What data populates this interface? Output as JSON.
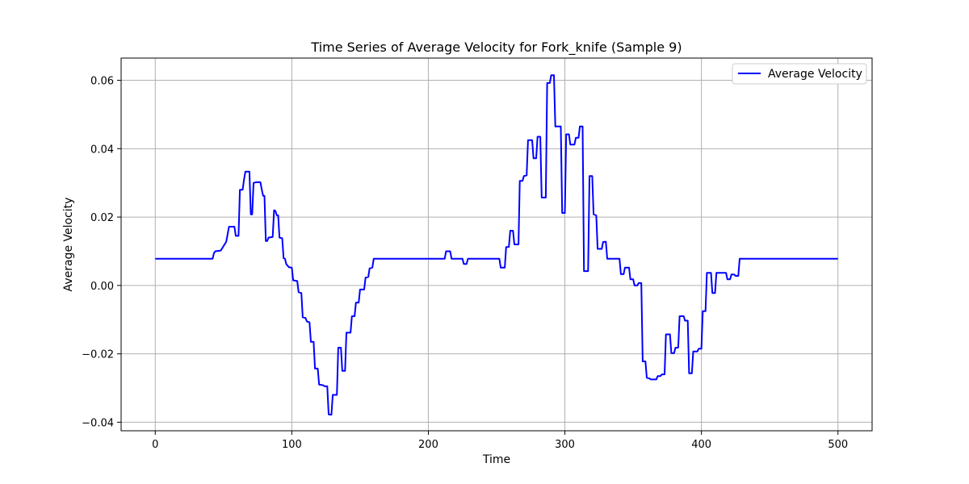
{
  "chart_data": {
    "type": "line",
    "title": "Time Series of Average Velocity for Fork_knife (Sample 9)",
    "xlabel": "Time",
    "ylabel": "Average Velocity",
    "xlim": [
      -25,
      525
    ],
    "ylim": [
      -0.0425,
      0.0665
    ],
    "xticks": [
      0,
      100,
      200,
      300,
      400,
      500
    ],
    "xtick_labels": [
      "0",
      "100",
      "200",
      "300",
      "400",
      "500"
    ],
    "yticks": [
      -0.04,
      -0.02,
      0.0,
      0.02,
      0.04,
      0.06
    ],
    "ytick_labels": [
      "−0.04",
      "−0.02",
      "0.00",
      "0.02",
      "0.04",
      "0.06"
    ],
    "grid": true,
    "legend_position": "top-right",
    "series": [
      {
        "name": "Average Velocity",
        "color": "#0000ff",
        "points": [
          [
            0,
            0.0078
          ],
          [
            42,
            0.0078
          ],
          [
            43,
            0.0095
          ],
          [
            44,
            0.01
          ],
          [
            48,
            0.0102
          ],
          [
            50,
            0.0115
          ],
          [
            52,
            0.0128
          ],
          [
            53,
            0.015
          ],
          [
            54,
            0.0172
          ],
          [
            58,
            0.0172
          ],
          [
            59,
            0.0145
          ],
          [
            61,
            0.0145
          ],
          [
            62,
            0.028
          ],
          [
            64,
            0.028
          ],
          [
            65,
            0.031
          ],
          [
            66,
            0.0333
          ],
          [
            69,
            0.0333
          ],
          [
            70,
            0.0208
          ],
          [
            71,
            0.0208
          ],
          [
            72,
            0.03
          ],
          [
            74,
            0.0302
          ],
          [
            77,
            0.0302
          ],
          [
            78,
            0.028
          ],
          [
            79,
            0.0262
          ],
          [
            80,
            0.0262
          ],
          [
            81,
            0.013
          ],
          [
            82,
            0.013
          ],
          [
            83,
            0.014
          ],
          [
            86,
            0.0142
          ],
          [
            87,
            0.022
          ],
          [
            88,
            0.0218
          ],
          [
            89,
            0.0205
          ],
          [
            90,
            0.0205
          ],
          [
            91,
            0.014
          ],
          [
            93,
            0.0138
          ],
          [
            94,
            0.008
          ],
          [
            95,
            0.0078
          ],
          [
            96,
            0.0062
          ],
          [
            98,
            0.0053
          ],
          [
            100,
            0.0052
          ],
          [
            101,
            0.0015
          ],
          [
            104,
            0.0013
          ],
          [
            105,
            -0.002
          ],
          [
            107,
            -0.0022
          ],
          [
            108,
            -0.0093
          ],
          [
            110,
            -0.0095
          ],
          [
            111,
            -0.0105
          ],
          [
            113,
            -0.0108
          ],
          [
            114,
            -0.0165
          ],
          [
            116,
            -0.0165
          ],
          [
            117,
            -0.0243
          ],
          [
            119,
            -0.0243
          ],
          [
            120,
            -0.029
          ],
          [
            123,
            -0.0292
          ],
          [
            124,
            -0.0295
          ],
          [
            126,
            -0.0295
          ],
          [
            127,
            -0.0377
          ],
          [
            129,
            -0.0378
          ],
          [
            130,
            -0.032
          ],
          [
            133,
            -0.032
          ],
          [
            134,
            -0.0182
          ],
          [
            136,
            -0.0182
          ],
          [
            137,
            -0.025
          ],
          [
            139,
            -0.025
          ],
          [
            140,
            -0.0138
          ],
          [
            143,
            -0.0138
          ],
          [
            144,
            -0.009
          ],
          [
            146,
            -0.009
          ],
          [
            147,
            -0.005
          ],
          [
            149,
            -0.005
          ],
          [
            150,
            -0.0012
          ],
          [
            153,
            -0.0012
          ],
          [
            154,
            0.0023
          ],
          [
            156,
            0.0025
          ],
          [
            157,
            0.005
          ],
          [
            159,
            0.0052
          ],
          [
            160,
            0.0078
          ],
          [
            212,
            0.0078
          ],
          [
            213,
            0.01
          ],
          [
            216,
            0.01
          ],
          [
            217,
            0.0078
          ],
          [
            225,
            0.0078
          ],
          [
            226,
            0.0063
          ],
          [
            228,
            0.0063
          ],
          [
            229,
            0.0078
          ],
          [
            252,
            0.0078
          ],
          [
            253,
            0.0052
          ],
          [
            256,
            0.0052
          ],
          [
            257,
            0.0112
          ],
          [
            259,
            0.0113
          ],
          [
            260,
            0.016
          ],
          [
            262,
            0.016
          ],
          [
            263,
            0.012
          ],
          [
            266,
            0.012
          ],
          [
            267,
            0.0306
          ],
          [
            269,
            0.0306
          ],
          [
            270,
            0.032
          ],
          [
            272,
            0.0322
          ],
          [
            273,
            0.0425
          ],
          [
            276,
            0.0425
          ],
          [
            277,
            0.0372
          ],
          [
            279,
            0.0372
          ],
          [
            280,
            0.0435
          ],
          [
            282,
            0.0435
          ],
          [
            283,
            0.0257
          ],
          [
            286,
            0.0257
          ],
          [
            287,
            0.0592
          ],
          [
            289,
            0.0592
          ],
          [
            290,
            0.0615
          ],
          [
            292,
            0.0615
          ],
          [
            293,
            0.0465
          ],
          [
            297,
            0.0465
          ],
          [
            298,
            0.0212
          ],
          [
            300,
            0.0212
          ],
          [
            301,
            0.0442
          ],
          [
            303,
            0.0442
          ],
          [
            304,
            0.0412
          ],
          [
            307,
            0.0412
          ],
          [
            308,
            0.0432
          ],
          [
            310,
            0.0432
          ],
          [
            311,
            0.0465
          ],
          [
            313,
            0.0465
          ],
          [
            314,
            0.0042
          ],
          [
            317,
            0.0042
          ],
          [
            318,
            0.032
          ],
          [
            320,
            0.032
          ],
          [
            321,
            0.0208
          ],
          [
            323,
            0.0205
          ],
          [
            324,
            0.0107
          ],
          [
            327,
            0.0107
          ],
          [
            328,
            0.0127
          ],
          [
            330,
            0.0128
          ],
          [
            331,
            0.0078
          ],
          [
            340,
            0.0078
          ],
          [
            341,
            0.0033
          ],
          [
            343,
            0.0033
          ],
          [
            344,
            0.0052
          ],
          [
            347,
            0.0052
          ],
          [
            348,
            0.0018
          ],
          [
            350,
            0.0018
          ],
          [
            351,
            0.0
          ],
          [
            353,
            0.0
          ],
          [
            354,
            0.0007
          ],
          [
            356,
            0.0007
          ],
          [
            357,
            -0.0222
          ],
          [
            359,
            -0.0222
          ],
          [
            360,
            -0.027
          ],
          [
            362,
            -0.0272
          ],
          [
            363,
            -0.0275
          ],
          [
            367,
            -0.0275
          ],
          [
            368,
            -0.0265
          ],
          [
            370,
            -0.0265
          ],
          [
            371,
            -0.026
          ],
          [
            373,
            -0.026
          ],
          [
            374,
            -0.0143
          ],
          [
            377,
            -0.0143
          ],
          [
            378,
            -0.0198
          ],
          [
            380,
            -0.0198
          ],
          [
            381,
            -0.0182
          ],
          [
            383,
            -0.0182
          ],
          [
            384,
            -0.009
          ],
          [
            387,
            -0.009
          ],
          [
            388,
            -0.0103
          ],
          [
            390,
            -0.0103
          ],
          [
            391,
            -0.0257
          ],
          [
            393,
            -0.0257
          ],
          [
            394,
            -0.0193
          ],
          [
            397,
            -0.0193
          ],
          [
            398,
            -0.0185
          ],
          [
            400,
            -0.0185
          ],
          [
            401,
            -0.0075
          ],
          [
            403,
            -0.0075
          ],
          [
            404,
            0.0037
          ],
          [
            407,
            0.0037
          ],
          [
            408,
            -0.0022
          ],
          [
            410,
            -0.0022
          ],
          [
            411,
            0.0037
          ],
          [
            418,
            0.0037
          ],
          [
            419,
            0.0018
          ],
          [
            421,
            0.0018
          ],
          [
            422,
            0.0032
          ],
          [
            424,
            0.0032
          ],
          [
            425,
            0.0028
          ],
          [
            427,
            0.0028
          ],
          [
            428,
            0.0078
          ],
          [
            500,
            0.0078
          ]
        ]
      }
    ]
  }
}
